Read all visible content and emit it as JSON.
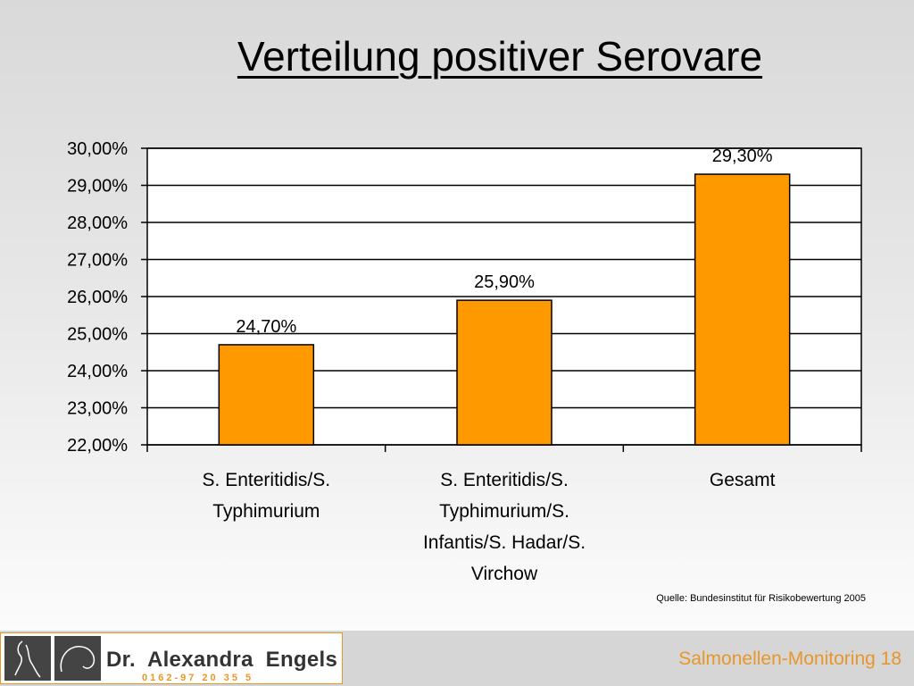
{
  "slide": {
    "title": "Verteilung positiver Serovare",
    "source": "Quelle: Bundesinstitut für Risikobewertung 2005",
    "footer_text": "Salmonellen-Monitoring 18"
  },
  "logo": {
    "name": "Dr.  Alexandra  Engels",
    "phone": "0162-97 20 35 5"
  },
  "colors": {
    "bar": "#ff9900",
    "accent": "#e8962a"
  },
  "chart_data": {
    "type": "bar",
    "categories": [
      [
        "S. Enteritidis/S.",
        "Typhimurium"
      ],
      [
        "S. Enteritidis/S.",
        "Typhimurium/S.",
        "Infantis/S. Hadar/S.",
        "Virchow"
      ],
      [
        "Gesamt"
      ]
    ],
    "values": [
      24.7,
      25.9,
      29.3
    ],
    "value_labels": [
      "24,70%",
      "25,90%",
      "29,30%"
    ],
    "y_tick_labels": [
      "22,00%",
      "23,00%",
      "24,00%",
      "25,00%",
      "26,00%",
      "27,00%",
      "28,00%",
      "29,00%",
      "30,00%"
    ],
    "ylim": [
      22,
      30
    ],
    "ystep": 1,
    "grid": true,
    "legend": false,
    "title": "",
    "xlabel": "",
    "ylabel": ""
  }
}
